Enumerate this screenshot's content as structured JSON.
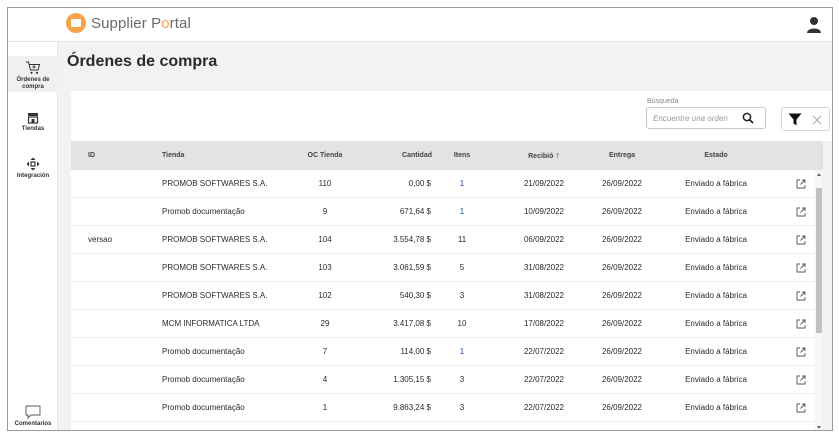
{
  "app": {
    "logo_part1": "Supplier P",
    "logo_o": "o",
    "logo_part2": "rtal",
    "brand_color": "#f5a34a"
  },
  "sidebar": {
    "items": [
      {
        "label_line1": "Órdenes de",
        "label_line2": "compra",
        "icon": "cart-icon",
        "active": true
      },
      {
        "label": "Tiendas",
        "icon": "store-icon"
      },
      {
        "label": "Integración",
        "icon": "integration-icon"
      },
      {
        "label": "Comentarios",
        "icon": "comment-icon"
      }
    ]
  },
  "page": {
    "title": "Órdenes de compra"
  },
  "search": {
    "label": "Búsqueda",
    "placeholder": "Encuentre una orden"
  },
  "table": {
    "headers": {
      "id": "ID",
      "tienda": "Tienda",
      "oc": "OC Tienda",
      "cantidad": "Cantidad",
      "itens": "Itens",
      "recibio": "Recibió",
      "entrega": "Entrega",
      "estado": "Estado"
    },
    "sort_indicator": "↑",
    "rows": [
      {
        "id": "",
        "tienda": "PROMOB SOFTWARES S.A.",
        "oc": "110",
        "cantidad": "0,00 $",
        "itens": "1",
        "itens_link": true,
        "recibio": "21/09/2022",
        "entrega": "26/09/2022",
        "estado": "Enviado a fábrica"
      },
      {
        "id": "",
        "tienda": "Promob documentação",
        "oc": "9",
        "cantidad": "671,64 $",
        "itens": "1",
        "itens_link": true,
        "recibio": "10/09/2022",
        "entrega": "26/09/2022",
        "estado": "Enviado a fábrica"
      },
      {
        "id": "versao",
        "tienda": "PROMOB SOFTWARES S.A.",
        "oc": "104",
        "cantidad": "3.554,78 $",
        "itens": "11",
        "itens_link": false,
        "recibio": "06/09/2022",
        "entrega": "26/09/2022",
        "estado": "Enviado a fábrica"
      },
      {
        "id": "",
        "tienda": "PROMOB SOFTWARES S.A.",
        "oc": "103",
        "cantidad": "3.061,59 $",
        "itens": "5",
        "itens_link": false,
        "recibio": "31/08/2022",
        "entrega": "26/09/2022",
        "estado": "Enviado a fábrica"
      },
      {
        "id": "",
        "tienda": "PROMOB SOFTWARES S.A.",
        "oc": "102",
        "cantidad": "540,30 $",
        "itens": "3",
        "itens_link": false,
        "recibio": "31/08/2022",
        "entrega": "26/09/2022",
        "estado": "Enviado a fábrica"
      },
      {
        "id": "",
        "tienda": "MCM INFORMATICA LTDA",
        "oc": "29",
        "cantidad": "3.417,08 $",
        "itens": "10",
        "itens_link": false,
        "recibio": "17/08/2022",
        "entrega": "26/09/2022",
        "estado": "Enviado a fábrica"
      },
      {
        "id": "",
        "tienda": "Promob documentação",
        "oc": "7",
        "cantidad": "114,00 $",
        "itens": "1",
        "itens_link": true,
        "recibio": "22/07/2022",
        "entrega": "26/09/2022",
        "estado": "Enviado a fábrica"
      },
      {
        "id": "",
        "tienda": "Promob documentação",
        "oc": "4",
        "cantidad": "1.305,15 $",
        "itens": "3",
        "itens_link": false,
        "recibio": "22/07/2022",
        "entrega": "26/09/2022",
        "estado": "Enviado a fábrica"
      },
      {
        "id": "",
        "tienda": "Promob documentação",
        "oc": "1",
        "cantidad": "9.863,24 $",
        "itens": "3",
        "itens_link": false,
        "recibio": "22/07/2022",
        "entrega": "26/09/2022",
        "estado": "Enviado a fábrica"
      }
    ]
  }
}
